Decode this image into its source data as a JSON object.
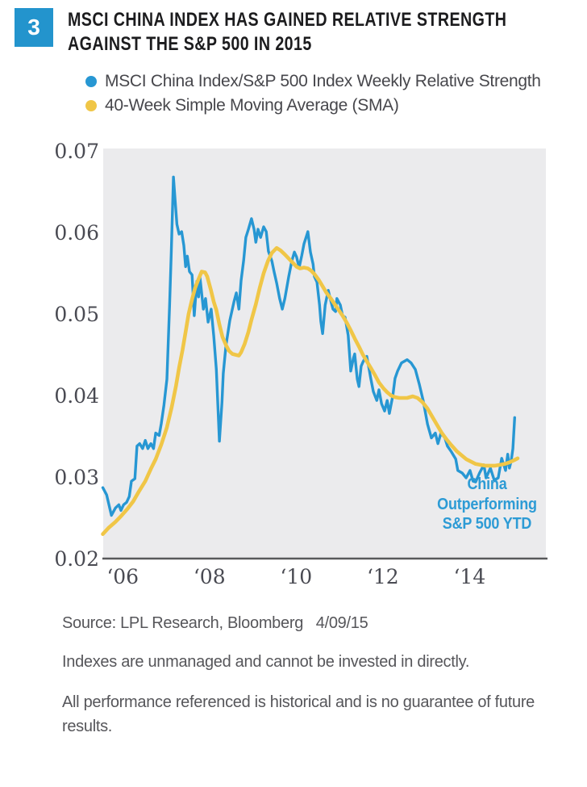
{
  "colors": {
    "brand_blue": "#2394cd",
    "series_blue": "#2797d3",
    "series_yellow": "#f0c647",
    "plot_bg": "#ebebed",
    "axis": "#58595b",
    "tick_label": "#494a52",
    "annotation_blue": "#2d9bd5"
  },
  "figure": {
    "number": "3",
    "title_line1": "MSCI CHINA INDEX HAS GAINED RELATIVE STRENGTH",
    "title_line2": "AGAINST THE S&P 500 IN 2015"
  },
  "legend": {
    "items": [
      {
        "label": "MSCI China Index/S&P 500 Index Weekly Relative Strength",
        "color": "#2797d3"
      },
      {
        "label": "40-Week Simple Moving Average (SMA)",
        "color": "#f0c647"
      }
    ]
  },
  "chart_data": {
    "type": "line",
    "title": "",
    "xlabel": "",
    "ylabel": "",
    "grid": false,
    "legend_position": "top",
    "plot_bg": "#ebebed",
    "axis_color": "#58595b",
    "tick_label_color": "#494a52",
    "x_axis": {
      "range": [
        2005.55,
        2015.76
      ],
      "ticks": [
        2006,
        2008,
        2010,
        2012,
        2014
      ],
      "tick_labels": [
        "‘06",
        "‘08",
        "‘10",
        "‘12",
        "‘14"
      ]
    },
    "y_axis": {
      "range": [
        0.02,
        0.0703
      ],
      "ticks": [
        0.07,
        0.06,
        0.05,
        0.04,
        0.03,
        0.02
      ],
      "tick_labels": [
        "0.07",
        "0.06",
        "0.05",
        "0.04",
        "0.03",
        "0.02"
      ]
    },
    "annotation": {
      "text": "China Outperforming S&P 500 YTD",
      "lines": [
        "China",
        "Outperforming",
        "S&P 500 YTD"
      ],
      "color": "#2d9bd5"
    },
    "series": [
      {
        "name": "MSCI China Index/S&P 500 Index Weekly Relative Strength",
        "color": "#2797d3",
        "stroke_width": 3.4,
        "points": [
          [
            2005.54,
            0.0287
          ],
          [
            2005.63,
            0.0278
          ],
          [
            2005.74,
            0.0253
          ],
          [
            2005.83,
            0.0262
          ],
          [
            2005.91,
            0.0266
          ],
          [
            2005.96,
            0.0259
          ],
          [
            2006.02,
            0.0266
          ],
          [
            2006.09,
            0.0269
          ],
          [
            2006.15,
            0.0276
          ],
          [
            2006.2,
            0.0295
          ],
          [
            2006.28,
            0.0298
          ],
          [
            2006.33,
            0.0338
          ],
          [
            2006.39,
            0.0341
          ],
          [
            2006.46,
            0.0335
          ],
          [
            2006.52,
            0.0345
          ],
          [
            2006.58,
            0.0335
          ],
          [
            2006.65,
            0.0341
          ],
          [
            2006.71,
            0.0335
          ],
          [
            2006.76,
            0.0354
          ],
          [
            2006.84,
            0.0351
          ],
          [
            2006.89,
            0.0366
          ],
          [
            2006.95,
            0.0388
          ],
          [
            2007.02,
            0.042
          ],
          [
            2007.08,
            0.051
          ],
          [
            2007.12,
            0.0575
          ],
          [
            2007.17,
            0.0668
          ],
          [
            2007.21,
            0.0638
          ],
          [
            2007.25,
            0.061
          ],
          [
            2007.3,
            0.0598
          ],
          [
            2007.36,
            0.0601
          ],
          [
            2007.41,
            0.0584
          ],
          [
            2007.45,
            0.0558
          ],
          [
            2007.49,
            0.0571
          ],
          [
            2007.54,
            0.0552
          ],
          [
            2007.6,
            0.0548
          ],
          [
            2007.65,
            0.0498
          ],
          [
            2007.71,
            0.054
          ],
          [
            2007.75,
            0.0521
          ],
          [
            2007.78,
            0.0546
          ],
          [
            2007.86,
            0.0506
          ],
          [
            2007.91,
            0.0519
          ],
          [
            2007.97,
            0.049
          ],
          [
            2008.04,
            0.0506
          ],
          [
            2008.1,
            0.0473
          ],
          [
            2008.16,
            0.0432
          ],
          [
            2008.23,
            0.0344
          ],
          [
            2008.29,
            0.0392
          ],
          [
            2008.32,
            0.0427
          ],
          [
            2008.38,
            0.0461
          ],
          [
            2008.47,
            0.0492
          ],
          [
            2008.57,
            0.0516
          ],
          [
            2008.62,
            0.0526
          ],
          [
            2008.68,
            0.0506
          ],
          [
            2008.73,
            0.0541
          ],
          [
            2008.79,
            0.0566
          ],
          [
            2008.84,
            0.0594
          ],
          [
            2008.9,
            0.0604
          ],
          [
            2008.97,
            0.0617
          ],
          [
            2009.03,
            0.0604
          ],
          [
            2009.07,
            0.0588
          ],
          [
            2009.12,
            0.0604
          ],
          [
            2009.18,
            0.0594
          ],
          [
            2009.25,
            0.0607
          ],
          [
            2009.31,
            0.0601
          ],
          [
            2009.36,
            0.0577
          ],
          [
            2009.44,
            0.0565
          ],
          [
            2009.49,
            0.0552
          ],
          [
            2009.55,
            0.0538
          ],
          [
            2009.62,
            0.0519
          ],
          [
            2009.68,
            0.0506
          ],
          [
            2009.74,
            0.0519
          ],
          [
            2009.83,
            0.0546
          ],
          [
            2009.9,
            0.0565
          ],
          [
            2009.96,
            0.0576
          ],
          [
            2010.01,
            0.057
          ],
          [
            2010.07,
            0.0557
          ],
          [
            2010.13,
            0.0572
          ],
          [
            2010.18,
            0.0586
          ],
          [
            2010.24,
            0.0596
          ],
          [
            2010.27,
            0.0601
          ],
          [
            2010.33,
            0.0576
          ],
          [
            2010.39,
            0.0561
          ],
          [
            2010.42,
            0.0546
          ],
          [
            2010.48,
            0.0539
          ],
          [
            2010.54,
            0.0511
          ],
          [
            2010.57,
            0.0491
          ],
          [
            2010.61,
            0.0476
          ],
          [
            2010.67,
            0.0511
          ],
          [
            2010.74,
            0.0529
          ],
          [
            2010.8,
            0.0516
          ],
          [
            2010.85,
            0.0506
          ],
          [
            2010.91,
            0.0503
          ],
          [
            2010.94,
            0.0519
          ],
          [
            2011.02,
            0.0511
          ],
          [
            2011.07,
            0.0498
          ],
          [
            2011.13,
            0.0496
          ],
          [
            2011.2,
            0.0474
          ],
          [
            2011.26,
            0.043
          ],
          [
            2011.32,
            0.0446
          ],
          [
            2011.35,
            0.0451
          ],
          [
            2011.41,
            0.042
          ],
          [
            2011.45,
            0.0411
          ],
          [
            2011.5,
            0.0436
          ],
          [
            2011.54,
            0.0441
          ],
          [
            2011.59,
            0.0446
          ],
          [
            2011.63,
            0.0448
          ],
          [
            2011.69,
            0.043
          ],
          [
            2011.72,
            0.0421
          ],
          [
            2011.78,
            0.0405
          ],
          [
            2011.86,
            0.0394
          ],
          [
            2011.91,
            0.0407
          ],
          [
            2011.97,
            0.039
          ],
          [
            2012.04,
            0.0381
          ],
          [
            2012.1,
            0.0394
          ],
          [
            2012.15,
            0.0378
          ],
          [
            2012.23,
            0.04
          ],
          [
            2012.28,
            0.0421
          ],
          [
            2012.34,
            0.043
          ],
          [
            2012.43,
            0.044
          ],
          [
            2012.56,
            0.0444
          ],
          [
            2012.65,
            0.044
          ],
          [
            2012.75,
            0.0432
          ],
          [
            2012.84,
            0.0414
          ],
          [
            2012.93,
            0.0394
          ],
          [
            2013.03,
            0.0365
          ],
          [
            2013.12,
            0.0348
          ],
          [
            2013.21,
            0.0354
          ],
          [
            2013.27,
            0.0341
          ],
          [
            2013.34,
            0.0354
          ],
          [
            2013.43,
            0.0348
          ],
          [
            2013.49,
            0.0338
          ],
          [
            2013.58,
            0.0331
          ],
          [
            2013.68,
            0.0322
          ],
          [
            2013.73,
            0.0308
          ],
          [
            2013.83,
            0.0305
          ],
          [
            2013.92,
            0.0299
          ],
          [
            2014.01,
            0.0308
          ],
          [
            2014.08,
            0.0295
          ],
          [
            2014.14,
            0.0294
          ],
          [
            2014.23,
            0.0305
          ],
          [
            2014.33,
            0.0315
          ],
          [
            2014.38,
            0.0299
          ],
          [
            2014.48,
            0.0311
          ],
          [
            2014.57,
            0.0296
          ],
          [
            2014.66,
            0.0299
          ],
          [
            2014.74,
            0.0323
          ],
          [
            2014.79,
            0.0315
          ],
          [
            2014.83,
            0.0308
          ],
          [
            2014.88,
            0.0328
          ],
          [
            2014.92,
            0.0311
          ],
          [
            2014.96,
            0.032
          ],
          [
            2015.0,
            0.0335
          ],
          [
            2015.04,
            0.0373
          ]
        ]
      },
      {
        "name": "40-Week Simple Moving Average (SMA)",
        "color": "#f0c647",
        "stroke_width": 4.6,
        "points": [
          [
            2005.54,
            0.023
          ],
          [
            2005.68,
            0.0238
          ],
          [
            2005.83,
            0.0245
          ],
          [
            2005.96,
            0.0252
          ],
          [
            2006.11,
            0.0261
          ],
          [
            2006.24,
            0.027
          ],
          [
            2006.37,
            0.0282
          ],
          [
            2006.52,
            0.0295
          ],
          [
            2006.65,
            0.031
          ],
          [
            2006.76,
            0.0322
          ],
          [
            2006.89,
            0.034
          ],
          [
            2007.02,
            0.0361
          ],
          [
            2007.13,
            0.0386
          ],
          [
            2007.23,
            0.0412
          ],
          [
            2007.3,
            0.0434
          ],
          [
            2007.38,
            0.0456
          ],
          [
            2007.45,
            0.0478
          ],
          [
            2007.52,
            0.05
          ],
          [
            2007.6,
            0.0518
          ],
          [
            2007.67,
            0.0532
          ],
          [
            2007.75,
            0.0543
          ],
          [
            2007.82,
            0.0552
          ],
          [
            2007.9,
            0.0551
          ],
          [
            2007.95,
            0.0546
          ],
          [
            2008.03,
            0.053
          ],
          [
            2008.1,
            0.0515
          ],
          [
            2008.16,
            0.0505
          ],
          [
            2008.23,
            0.0487
          ],
          [
            2008.3,
            0.0472
          ],
          [
            2008.38,
            0.0462
          ],
          [
            2008.45,
            0.0455
          ],
          [
            2008.53,
            0.0451
          ],
          [
            2008.6,
            0.045
          ],
          [
            2008.68,
            0.0449
          ],
          [
            2008.73,
            0.0453
          ],
          [
            2008.81,
            0.0463
          ],
          [
            2008.9,
            0.0478
          ],
          [
            2008.97,
            0.0493
          ],
          [
            2009.07,
            0.0512
          ],
          [
            2009.16,
            0.0532
          ],
          [
            2009.25,
            0.055
          ],
          [
            2009.35,
            0.0565
          ],
          [
            2009.44,
            0.0575
          ],
          [
            2009.55,
            0.0581
          ],
          [
            2009.64,
            0.0578
          ],
          [
            2009.74,
            0.0573
          ],
          [
            2009.83,
            0.0568
          ],
          [
            2009.92,
            0.0563
          ],
          [
            2010.01,
            0.0558
          ],
          [
            2010.09,
            0.0556
          ],
          [
            2010.18,
            0.0557
          ],
          [
            2010.27,
            0.0556
          ],
          [
            2010.35,
            0.0553
          ],
          [
            2010.42,
            0.0549
          ],
          [
            2010.52,
            0.0542
          ],
          [
            2010.61,
            0.0534
          ],
          [
            2010.7,
            0.0526
          ],
          [
            2010.8,
            0.0519
          ],
          [
            2010.89,
            0.0512
          ],
          [
            2010.98,
            0.0505
          ],
          [
            2011.07,
            0.0498
          ],
          [
            2011.17,
            0.0489
          ],
          [
            2011.26,
            0.048
          ],
          [
            2011.35,
            0.047
          ],
          [
            2011.45,
            0.046
          ],
          [
            2011.54,
            0.045
          ],
          [
            2011.63,
            0.0442
          ],
          [
            2011.72,
            0.0434
          ],
          [
            2011.82,
            0.0425
          ],
          [
            2011.91,
            0.0416
          ],
          [
            2012.01,
            0.0409
          ],
          [
            2012.1,
            0.0404
          ],
          [
            2012.19,
            0.04
          ],
          [
            2012.28,
            0.0398
          ],
          [
            2012.38,
            0.0397
          ],
          [
            2012.47,
            0.0397
          ],
          [
            2012.56,
            0.0397
          ],
          [
            2012.69,
            0.0399
          ],
          [
            2012.8,
            0.0397
          ],
          [
            2012.91,
            0.0392
          ],
          [
            2013.03,
            0.0384
          ],
          [
            2013.14,
            0.0374
          ],
          [
            2013.25,
            0.0364
          ],
          [
            2013.36,
            0.0354
          ],
          [
            2013.47,
            0.0346
          ],
          [
            2013.58,
            0.0339
          ],
          [
            2013.7,
            0.0332
          ],
          [
            2013.81,
            0.0327
          ],
          [
            2013.92,
            0.0322
          ],
          [
            2014.03,
            0.0319
          ],
          [
            2014.14,
            0.0316
          ],
          [
            2014.25,
            0.0315
          ],
          [
            2014.36,
            0.0314
          ],
          [
            2014.48,
            0.0314
          ],
          [
            2014.59,
            0.0314
          ],
          [
            2014.7,
            0.0315
          ],
          [
            2014.81,
            0.0316
          ],
          [
            2014.92,
            0.0318
          ],
          [
            2015.04,
            0.0321
          ],
          [
            2015.11,
            0.0323
          ]
        ]
      }
    ]
  },
  "footer": {
    "source": "Source: LPL Research, Bloomberg   4/09/15",
    "disclaimer1": "Indexes are unmanaged and cannot be invested in directly.",
    "disclaimer2": "All performance referenced is historical and is no guarantee of future results."
  }
}
